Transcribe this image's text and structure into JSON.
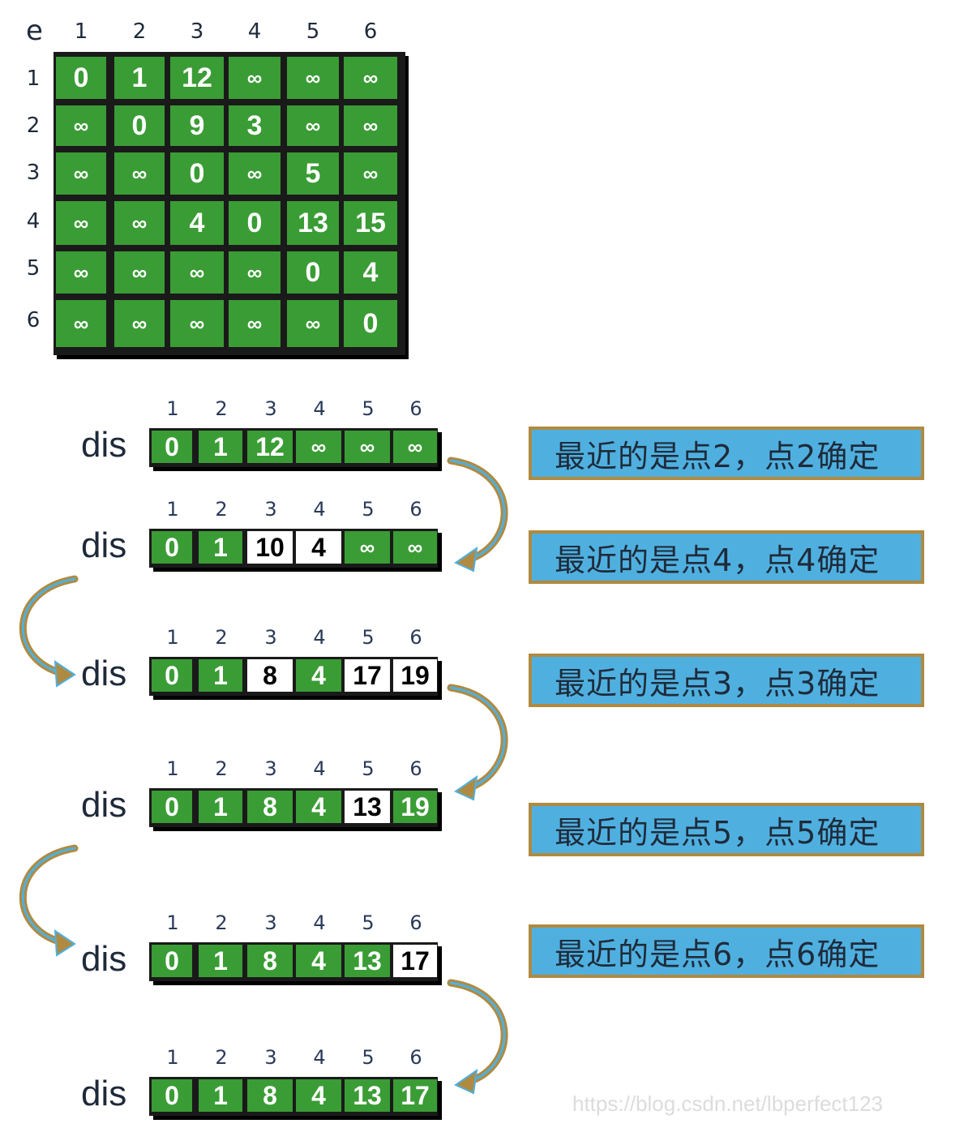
{
  "matrix": {
    "corner_label": "e",
    "col_headers": [
      "1",
      "2",
      "3",
      "4",
      "5",
      "6"
    ],
    "row_headers": [
      "1",
      "2",
      "3",
      "4",
      "5",
      "6"
    ],
    "rows": [
      [
        "0",
        "1",
        "12",
        "∞",
        "∞",
        "∞"
      ],
      [
        "∞",
        "0",
        "9",
        "3",
        "∞",
        "∞"
      ],
      [
        "∞",
        "∞",
        "0",
        "∞",
        "5",
        "∞"
      ],
      [
        "∞",
        "∞",
        "4",
        "0",
        "13",
        "15"
      ],
      [
        "∞",
        "∞",
        "∞",
        "∞",
        "0",
        "4"
      ],
      [
        "∞",
        "∞",
        "∞",
        "∞",
        "∞",
        "0"
      ]
    ]
  },
  "dis_label": "dis",
  "dis_col_headers": [
    "1",
    "2",
    "3",
    "4",
    "5",
    "6"
  ],
  "dis_rows": [
    {
      "values": [
        "0",
        "1",
        "12",
        "∞",
        "∞",
        "∞"
      ],
      "highlight": [
        false,
        false,
        false,
        false,
        false,
        false
      ]
    },
    {
      "values": [
        "0",
        "1",
        "10",
        "4",
        "∞",
        "∞"
      ],
      "highlight": [
        false,
        false,
        true,
        true,
        false,
        false
      ]
    },
    {
      "values": [
        "0",
        "1",
        "8",
        "4",
        "17",
        "19"
      ],
      "highlight": [
        false,
        false,
        true,
        false,
        true,
        true
      ]
    },
    {
      "values": [
        "0",
        "1",
        "8",
        "4",
        "13",
        "19"
      ],
      "highlight": [
        false,
        false,
        false,
        false,
        true,
        false
      ]
    },
    {
      "values": [
        "0",
        "1",
        "8",
        "4",
        "13",
        "17"
      ],
      "highlight": [
        false,
        false,
        false,
        false,
        false,
        true
      ]
    },
    {
      "values": [
        "0",
        "1",
        "8",
        "4",
        "13",
        "17"
      ],
      "highlight": [
        false,
        false,
        false,
        false,
        false,
        false
      ]
    }
  ],
  "notes": [
    "最近的是点2，点2确定",
    "最近的是点4，点4确定",
    "最近的是点3，点3确定",
    "最近的是点5，点5确定",
    "最近的是点6，点6确定"
  ],
  "watermark": "https://blog.csdn.net/lbperfect123",
  "colors": {
    "cell_green": "#3a9c35",
    "cell_white": "#ffffff",
    "note_blue": "#4fb0e0",
    "note_border": "#b08a40",
    "arrow_gold": "#b08a40",
    "arrow_blue": "#4fb0e0"
  }
}
